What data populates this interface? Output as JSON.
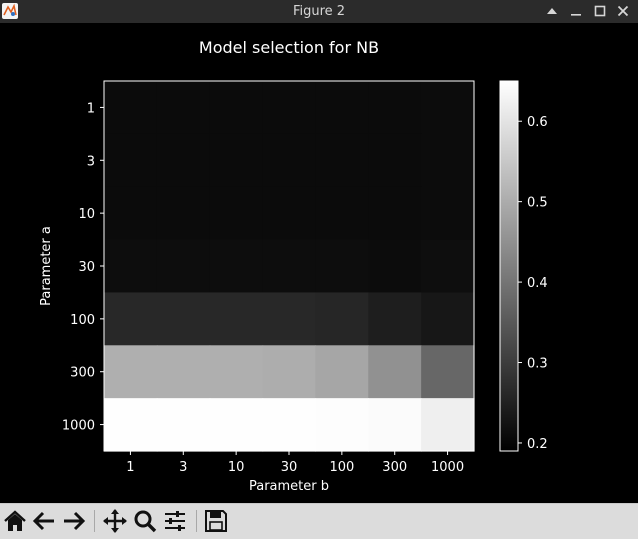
{
  "window": {
    "title": "Figure 2"
  },
  "toolbar": {
    "buttons": [
      {
        "name": "home-button",
        "icon": "home-icon"
      },
      {
        "name": "back-button",
        "icon": "arrow-left-icon"
      },
      {
        "name": "forward-button",
        "icon": "arrow-right-icon"
      },
      {
        "name": "pan-button",
        "icon": "move-icon"
      },
      {
        "name": "zoom-button",
        "icon": "magnifier-icon"
      },
      {
        "name": "configure-subplots-button",
        "icon": "sliders-icon"
      },
      {
        "name": "save-button",
        "icon": "floppy-disk-icon"
      }
    ]
  },
  "chart_data": {
    "type": "heatmap",
    "title": "Model selection for NB",
    "xlabel": "Parameter b",
    "ylabel": "Parameter a",
    "x_categories": [
      "1",
      "3",
      "10",
      "30",
      "100",
      "300",
      "1000"
    ],
    "y_categories": [
      "1",
      "3",
      "10",
      "30",
      "100",
      "300",
      "1000"
    ],
    "values": [
      [
        0.21,
        0.21,
        0.21,
        0.21,
        0.21,
        0.21,
        0.211
      ],
      [
        0.21,
        0.21,
        0.21,
        0.21,
        0.21,
        0.21,
        0.211
      ],
      [
        0.21,
        0.21,
        0.21,
        0.21,
        0.21,
        0.21,
        0.211
      ],
      [
        0.213,
        0.213,
        0.213,
        0.213,
        0.213,
        0.212,
        0.216
      ],
      [
        0.262,
        0.262,
        0.262,
        0.262,
        0.258,
        0.245,
        0.232
      ],
      [
        0.505,
        0.505,
        0.505,
        0.502,
        0.49,
        0.452,
        0.375
      ],
      [
        0.648,
        0.648,
        0.648,
        0.648,
        0.647,
        0.642,
        0.622
      ]
    ],
    "colormap": "gray",
    "colorbar": {
      "min": 0.19,
      "max": 0.65,
      "ticks": [
        0.2,
        0.3,
        0.4,
        0.5,
        0.6
      ]
    },
    "colors": {
      "background": "#000000",
      "text": "#ffffff"
    }
  }
}
